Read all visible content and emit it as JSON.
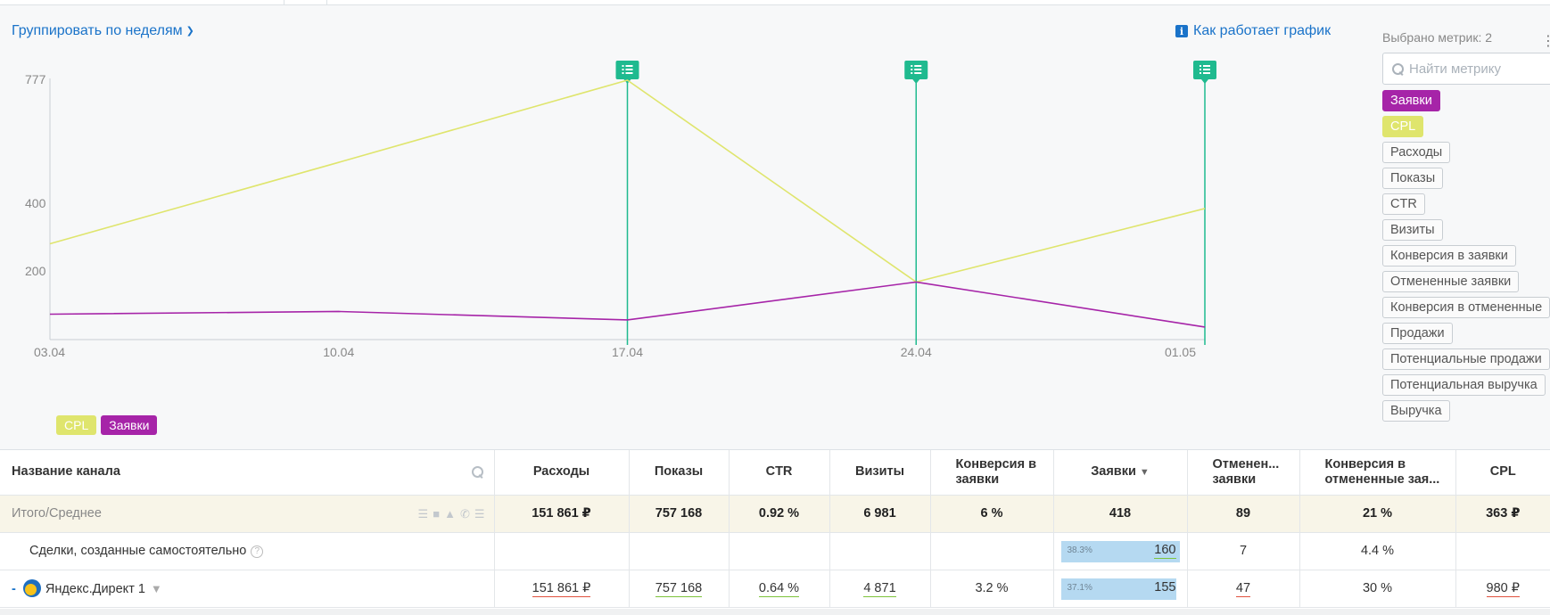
{
  "header": {
    "group_label": "Группировать по неделям",
    "how_label": "Как работает график"
  },
  "chart_data": {
    "type": "line",
    "x": [
      "03.04",
      "10.04",
      "17.04",
      "24.04",
      "01.05"
    ],
    "y_ticks": [
      "777",
      "400",
      "200"
    ],
    "series": [
      {
        "name": "CPL",
        "color": "#dfe56d",
        "values": [
          283,
          527,
          777,
          170,
          387
        ]
      },
      {
        "name": "Заявки",
        "color": "#a624a8",
        "values": [
          75,
          83,
          58,
          170,
          37
        ]
      }
    ],
    "markers_at": [
      "17.04",
      "24.04",
      "01.05"
    ],
    "marker_color": "#1fba8f",
    "title": "",
    "xlabel": "",
    "ylabel": ""
  },
  "legend": [
    {
      "label": "CPL",
      "color": "#dfe56d"
    },
    {
      "label": "Заявки",
      "color": "#a624a8"
    }
  ],
  "metrics": {
    "selected_label": "Выбрано метрик: 2",
    "search_placeholder": "Найти метрику",
    "chips": [
      {
        "label": "Заявки",
        "state": "purple"
      },
      {
        "label": "CPL",
        "state": "yellow"
      },
      {
        "label": "Расходы",
        "state": ""
      },
      {
        "label": "Показы",
        "state": ""
      },
      {
        "label": "CTR",
        "state": ""
      },
      {
        "label": "Визиты",
        "state": ""
      },
      {
        "label": "Конверсия в заявки",
        "state": ""
      },
      {
        "label": "Отмененные заявки",
        "state": ""
      },
      {
        "label": "Конверсия в отмененные",
        "state": ""
      },
      {
        "label": "Продажи",
        "state": ""
      },
      {
        "label": "Потенциальные продажи",
        "state": ""
      },
      {
        "label": "Потенциальная выручка",
        "state": ""
      },
      {
        "label": "Выручка",
        "state": ""
      }
    ]
  },
  "table": {
    "headers": {
      "name": "Название канала",
      "spend": "Расходы",
      "impressions": "Показы",
      "ctr": "CTR",
      "visits": "Визиты",
      "conv": "Конверсия в заявки",
      "leads": "Заявки",
      "cancelled": "Отменен... заявки",
      "conv_cancelled": "Конверсия в отмененные зая...",
      "cpl": "CPL"
    },
    "total": {
      "name": "Итого/Среднее",
      "spend": "151 861 ₽",
      "impressions": "757 168",
      "ctr": "0.92 %",
      "visits": "6 981",
      "conv": "6 %",
      "leads": "418",
      "cancelled": "89",
      "conv_cancelled": "21 %",
      "cpl": "363 ₽"
    },
    "rows": [
      {
        "name": "Сделки, созданные самостоятельно",
        "help": "?",
        "spend": "",
        "impressions": "",
        "ctr": "",
        "visits": "",
        "conv": "",
        "leads_pct": "38.3%",
        "leads_share": 0.383,
        "leads": "160",
        "cancelled": "7",
        "conv_cancelled": "4.4 %",
        "cpl": ""
      },
      {
        "dash": "-",
        "name": "Яндекс.Директ 1",
        "spend": "151 861 ₽",
        "impressions": "757 168",
        "ctr": "0.64 %",
        "visits": "4 871",
        "conv": "3.2 %",
        "leads_pct": "37.1%",
        "leads_share": 0.371,
        "leads": "155",
        "cancelled": "47",
        "conv_cancelled": "30 %",
        "cpl": "980 ₽"
      }
    ]
  }
}
